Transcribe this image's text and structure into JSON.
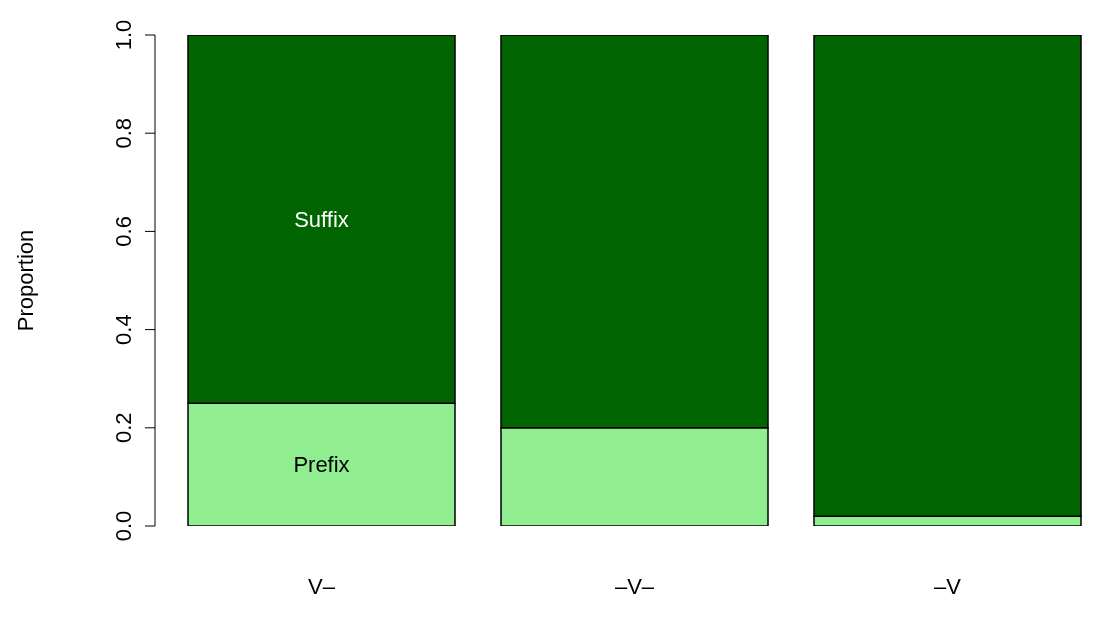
{
  "chart_data": {
    "type": "bar",
    "stacked": true,
    "ylabel": "Proportion",
    "categories": [
      "V–",
      "–V–",
      "–V"
    ],
    "series": [
      {
        "name": "Prefix",
        "color": "#90ee90",
        "values": [
          0.25,
          0.2,
          0.02
        ]
      },
      {
        "name": "Suffix",
        "color": "#006400",
        "values": [
          0.75,
          0.8,
          0.98
        ]
      }
    ],
    "ylim": [
      0,
      1
    ],
    "yticks": [
      {
        "value": 0,
        "label": "0.0"
      },
      0.2,
      0.4,
      0.6,
      0.8,
      {
        "value": 1,
        "label": "1.0"
      }
    ],
    "grid": false,
    "legend": false
  }
}
